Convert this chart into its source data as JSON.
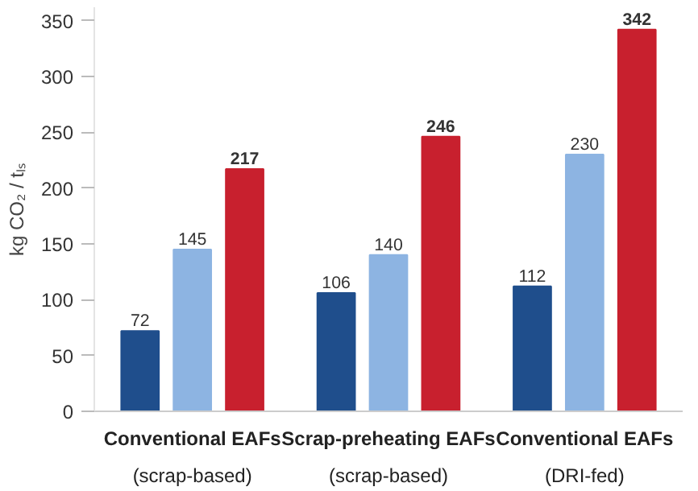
{
  "chart_data": {
    "type": "bar",
    "ylabel": "kg CO₂ / tₗₛ",
    "categories": [
      "Conventional EAFs\n(scrap-based)",
      "Scrap-preheating EAFs\n(scrap-based)",
      "Conventional EAFs\n(DRI-fed)"
    ],
    "series": [
      {
        "color": "#1f4e8c",
        "values": [
          72,
          106,
          112
        ]
      },
      {
        "color": "#8db4e2",
        "values": [
          145,
          140,
          230
        ]
      },
      {
        "color": "#c8202e",
        "values": [
          217,
          246,
          342
        ]
      }
    ],
    "ylim": [
      0,
      362
    ],
    "yticks": [
      0,
      50,
      100,
      150,
      200,
      250,
      300,
      350
    ],
    "grid": false,
    "data_labels": true
  }
}
